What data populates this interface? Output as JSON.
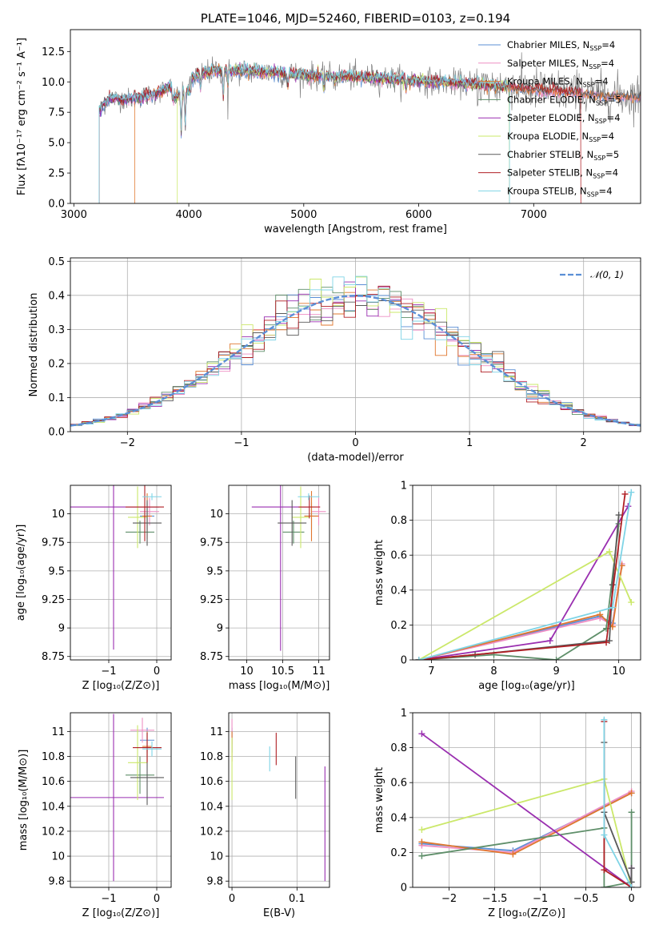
{
  "colors": {
    "chabrier_miles": "#5b8fd6",
    "salpeter_miles": "#ee8fc4",
    "kroupa_miles": "#e0772e",
    "chabrier_elodie": "#5f8f6a",
    "salpeter_elodie": "#9a2fb0",
    "kroupa_elodie": "#cbe86a",
    "chabrier_stelib": "#5a5a5a",
    "salpeter_stelib": "#b01f24",
    "kroupa_stelib": "#7fd4e6",
    "data": "#808080",
    "normal": "#5b8fd6"
  },
  "models": [
    {
      "key": "chabrier_miles",
      "imf": "Chabrier",
      "lib": "MILES",
      "nssp": "4"
    },
    {
      "key": "salpeter_miles",
      "imf": "Salpeter",
      "lib": "MILES",
      "nssp": "4"
    },
    {
      "key": "kroupa_miles",
      "imf": "Kroupa",
      "lib": "MILES",
      "nssp": "4"
    },
    {
      "key": "chabrier_elodie",
      "imf": "Chabrier",
      "lib": "ELODIE",
      "nssp": "5"
    },
    {
      "key": "salpeter_elodie",
      "imf": "Salpeter",
      "lib": "ELODIE",
      "nssp": "4"
    },
    {
      "key": "kroupa_elodie",
      "imf": "Kroupa",
      "lib": "ELODIE",
      "nssp": "4"
    },
    {
      "key": "chabrier_stelib",
      "imf": "Chabrier",
      "lib": "STELIB",
      "nssp": "5"
    },
    {
      "key": "salpeter_stelib",
      "imf": "Salpeter",
      "lib": "STELIB",
      "nssp": "4"
    },
    {
      "key": "kroupa_stelib",
      "imf": "Kroupa",
      "lib": "STELIB",
      "nssp": "4"
    }
  ],
  "chart_data": [
    {
      "id": "spectrum",
      "type": "line",
      "title": "PLATE=1046, MJD=52460, FIBERID=0103, z=0.194",
      "xlabel": "wavelength [Angstrom, rest frame]",
      "ylabel": "Flux [fλ10⁻¹⁷ erg cm⁻² s⁻¹ A⁻¹]",
      "xlim": [
        2970,
        7930
      ],
      "ylim": [
        0,
        14.3
      ],
      "xticks": [
        3000,
        4000,
        5000,
        6000,
        7000
      ],
      "yticks": [
        0.0,
        2.5,
        5.0,
        7.5,
        10.0,
        12.5
      ],
      "legend": "top-right",
      "continuum_x": [
        3220,
        3300,
        3500,
        3700,
        3900,
        4000,
        4200,
        4500,
        4800,
        5100,
        5500,
        6000,
        6500,
        7000,
        7300,
        7500,
        7930
      ],
      "continuum_y": [
        7.6,
        8.6,
        8.6,
        9.0,
        9.8,
        10.3,
        10.9,
        10.9,
        10.7,
        10.5,
        10.4,
        10.1,
        9.8,
        9.4,
        9.2,
        9.0,
        8.8
      ],
      "model_start_x": [
        3220,
        3220,
        3530,
        3220,
        3220,
        3900,
        3220,
        3220,
        3220
      ],
      "model_end_x": [
        7930,
        7930,
        7930,
        6790,
        6790,
        6790,
        7930,
        7410,
        6790
      ]
    },
    {
      "id": "residuals",
      "type": "histogram",
      "xlabel": "(data-model)/error",
      "ylabel": "Normed distribution",
      "xlim": [
        -2.5,
        2.5
      ],
      "ylim": [
        0,
        0.51
      ],
      "xticks": [
        -2,
        -1,
        0,
        1,
        2
      ],
      "yticks": [
        0.0,
        0.1,
        0.2,
        0.3,
        0.4,
        0.5
      ],
      "legend": "top-right",
      "normal_label": "𝒩(0, 1)",
      "bin_width": 0.1,
      "grid": true
    },
    {
      "id": "age_vs_Z",
      "type": "errorbar",
      "xlabel": "Z [log₁₀(Z/Z⊙)]",
      "ylabel": "age  [log₁₀(age/yr)]",
      "xlim": [
        -1.8,
        0.3
      ],
      "ylim": [
        8.72,
        10.25
      ],
      "xticks": [
        -1,
        0
      ],
      "yticks": [
        8.75,
        9.0,
        9.25,
        9.5,
        9.75,
        10.0
      ],
      "points": [
        {
          "model": "chabrier_miles",
          "x": -0.2,
          "y": 9.98,
          "xerr": 0.15,
          "yerr": 0.12
        },
        {
          "model": "salpeter_miles",
          "x": -0.15,
          "y": 10.02,
          "xerr": 0.2,
          "yerr": 0.12
        },
        {
          "model": "kroupa_miles",
          "x": -0.2,
          "y": 9.98,
          "xerr": 0.1,
          "yerr": 0.2
        },
        {
          "model": "chabrier_elodie",
          "x": -0.35,
          "y": 9.84,
          "xerr": 0.3,
          "yerr": 0.1
        },
        {
          "model": "salpeter_elodie",
          "x": -0.9,
          "y": 10.06,
          "xerr": 0.95,
          "yerr": 1.25
        },
        {
          "model": "kroupa_elodie",
          "x": -0.4,
          "y": 9.97,
          "xerr": 0.2,
          "yerr": 0.27
        },
        {
          "model": "chabrier_stelib",
          "x": -0.2,
          "y": 9.92,
          "xerr": 0.3,
          "yerr": 0.2
        },
        {
          "model": "salpeter_stelib",
          "x": -0.25,
          "y": 10.06,
          "xerr": 0.4,
          "yerr": 0.3
        },
        {
          "model": "kroupa_stelib",
          "x": -0.1,
          "y": 10.15,
          "xerr": 0.2,
          "yerr": 0.03
        }
      ]
    },
    {
      "id": "age_vs_mass",
      "type": "errorbar",
      "xlabel": "mass [log₁₀(M/M⊙)]",
      "ylabel": "",
      "xlim": [
        9.75,
        11.15
      ],
      "ylim": [
        8.72,
        10.25
      ],
      "xticks": [
        10.0,
        10.5,
        11.0
      ],
      "yticks": [
        8.75,
        9.0,
        9.25,
        9.5,
        9.75,
        10.0
      ],
      "points": [
        {
          "model": "chabrier_miles",
          "x": 10.9,
          "y": 9.98,
          "xerr": 0.1,
          "yerr": 0.12
        },
        {
          "model": "salpeter_miles",
          "x": 11.0,
          "y": 10.02,
          "xerr": 0.1,
          "yerr": 0.12
        },
        {
          "model": "kroupa_miles",
          "x": 10.9,
          "y": 9.98,
          "xerr": 0.1,
          "yerr": 0.22
        },
        {
          "model": "chabrier_elodie",
          "x": 10.65,
          "y": 9.84,
          "xerr": 0.15,
          "yerr": 0.1
        },
        {
          "model": "salpeter_elodie",
          "x": 10.47,
          "y": 10.06,
          "xerr": 0.4,
          "yerr": 1.26
        },
        {
          "model": "kroupa_elodie",
          "x": 10.75,
          "y": 9.97,
          "xerr": 0.12,
          "yerr": 0.27
        },
        {
          "model": "chabrier_stelib",
          "x": 10.63,
          "y": 9.92,
          "xerr": 0.2,
          "yerr": 0.2
        },
        {
          "model": "salpeter_stelib",
          "x": 10.87,
          "y": 10.06,
          "xerr": 0.15,
          "yerr": 0.1
        },
        {
          "model": "kroupa_stelib",
          "x": 10.86,
          "y": 10.15,
          "xerr": 0.15,
          "yerr": 0.03
        }
      ]
    },
    {
      "id": "weight_vs_age",
      "type": "line",
      "xlabel": "age  [log₁₀(age/yr)]",
      "ylabel": "mass weight",
      "xlim": [
        6.7,
        10.35
      ],
      "ylim": [
        0,
        1.0
      ],
      "xticks": [
        7,
        8,
        9,
        10
      ],
      "yticks": [
        0.0,
        0.2,
        0.4,
        0.6,
        0.8,
        1.0
      ],
      "series": [
        {
          "model": "chabrier_miles",
          "x": [
            6.8,
            9.7,
            9.9,
            10.05
          ],
          "y": [
            0.0,
            0.25,
            0.21,
            0.54
          ]
        },
        {
          "model": "salpeter_miles",
          "x": [
            6.8,
            9.7,
            9.9,
            10.05
          ],
          "y": [
            0.0,
            0.24,
            0.2,
            0.55
          ]
        },
        {
          "model": "kroupa_miles",
          "x": [
            6.8,
            9.7,
            9.9,
            10.05
          ],
          "y": [
            0.0,
            0.26,
            0.19,
            0.54
          ]
        },
        {
          "model": "chabrier_elodie",
          "x": [
            6.8,
            8.0,
            9.0,
            9.8,
            10.0
          ],
          "y": [
            0.0,
            0.03,
            0.0,
            0.18,
            0.78
          ]
        },
        {
          "model": "salpeter_elodie",
          "x": [
            6.8,
            8.9,
            10.15
          ],
          "y": [
            0.0,
            0.11,
            0.88
          ]
        },
        {
          "model": "kroupa_elodie",
          "x": [
            6.8,
            9.85,
            10.2
          ],
          "y": [
            0.0,
            0.62,
            0.33
          ]
        },
        {
          "model": "chabrier_stelib",
          "x": [
            6.8,
            7.7,
            9.85,
            9.9,
            10.0
          ],
          "y": [
            0.0,
            0.03,
            0.11,
            0.43,
            0.83
          ]
        },
        {
          "model": "salpeter_stelib",
          "x": [
            6.8,
            9.8,
            10.1
          ],
          "y": [
            0.0,
            0.1,
            0.95
          ]
        },
        {
          "model": "kroupa_stelib",
          "x": [
            6.8,
            9.9,
            10.2
          ],
          "y": [
            0.0,
            0.3,
            0.96
          ]
        }
      ]
    },
    {
      "id": "mass_vs_Z",
      "type": "errorbar",
      "xlabel": "Z [log₁₀(Z/Z⊙)]",
      "ylabel": "mass [log₁₀(M/M⊙)]",
      "xlim": [
        -1.8,
        0.3
      ],
      "ylim": [
        9.75,
        11.15
      ],
      "xticks": [
        -1,
        0
      ],
      "yticks": [
        9.8,
        10.0,
        10.2,
        10.4,
        10.6,
        10.8,
        11.0
      ],
      "points": [
        {
          "model": "chabrier_miles",
          "x": -0.2,
          "y": 10.93,
          "xerr": 0.15,
          "yerr": 0.1
        },
        {
          "model": "salpeter_miles",
          "x": -0.3,
          "y": 11.01,
          "xerr": 0.25,
          "yerr": 0.1
        },
        {
          "model": "kroupa_miles",
          "x": -0.2,
          "y": 10.88,
          "xerr": 0.1,
          "yerr": 0.12
        },
        {
          "model": "chabrier_elodie",
          "x": -0.35,
          "y": 10.65,
          "xerr": 0.3,
          "yerr": 0.15
        },
        {
          "model": "salpeter_elodie",
          "x": -0.9,
          "y": 10.47,
          "xerr": 1.05,
          "yerr": 0.67
        },
        {
          "model": "kroupa_elodie",
          "x": -0.4,
          "y": 10.75,
          "xerr": 0.2,
          "yerr": 0.3
        },
        {
          "model": "chabrier_stelib",
          "x": -0.2,
          "y": 10.63,
          "xerr": 0.35,
          "yerr": 0.22
        },
        {
          "model": "salpeter_stelib",
          "x": -0.2,
          "y": 10.87,
          "xerr": 0.3,
          "yerr": 0.12
        },
        {
          "model": "kroupa_stelib",
          "x": -0.1,
          "y": 10.86,
          "xerr": 0.2,
          "yerr": 0.06
        }
      ]
    },
    {
      "id": "mass_vs_ebv",
      "type": "errorbar",
      "xlabel": "E(B-V)",
      "ylabel": "",
      "xlim": [
        -0.005,
        0.15
      ],
      "ylim": [
        9.75,
        11.15
      ],
      "xticks": [
        0.0,
        0.1
      ],
      "yticks": [
        9.8,
        10.0,
        10.2,
        10.4,
        10.6,
        10.8,
        11.0
      ],
      "points": [
        {
          "model": "chabrier_miles",
          "x": 0.0,
          "y": 10.93,
          "xerr": 0.0,
          "yerr": 0.1
        },
        {
          "model": "salpeter_miles",
          "x": 0.0,
          "y": 11.0,
          "xerr": 0.0,
          "yerr": 0.1
        },
        {
          "model": "kroupa_miles",
          "x": 0.0,
          "y": 10.88,
          "xerr": 0.0,
          "yerr": 0.12
        },
        {
          "model": "kroupa_elodie",
          "x": 0.0,
          "y": 10.7,
          "xerr": 0.0,
          "yerr": 0.25
        },
        {
          "model": "kroupa_stelib",
          "x": 0.058,
          "y": 10.78,
          "xerr": 0.0,
          "yerr": 0.1
        },
        {
          "model": "salpeter_stelib",
          "x": 0.068,
          "y": 10.86,
          "xerr": 0.0,
          "yerr": 0.13
        },
        {
          "model": "chabrier_stelib",
          "x": 0.098,
          "y": 10.63,
          "xerr": 0.0,
          "yerr": 0.17
        },
        {
          "model": "salpeter_elodie",
          "x": 0.143,
          "y": 10.26,
          "xerr": 0.0,
          "yerr": 0.46
        }
      ]
    },
    {
      "id": "weight_vs_Z",
      "type": "line",
      "xlabel": "Z [log₁₀(Z/Z⊙)]",
      "ylabel": "mass weight",
      "xlim": [
        -2.4,
        0.1
      ],
      "ylim": [
        0,
        1.0
      ],
      "xticks": [
        -2.0,
        -1.5,
        -1.0,
        -0.5,
        0.0
      ],
      "yticks": [
        0.0,
        0.2,
        0.4,
        0.6,
        0.8,
        1.0
      ],
      "series": [
        {
          "model": "chabrier_miles",
          "x": [
            -2.3,
            -1.3,
            0.0
          ],
          "y": [
            0.25,
            0.21,
            0.54
          ]
        },
        {
          "model": "salpeter_miles",
          "x": [
            -2.3,
            -1.3,
            0.0
          ],
          "y": [
            0.24,
            0.2,
            0.55
          ]
        },
        {
          "model": "kroupa_miles",
          "x": [
            -2.3,
            -1.3,
            0.0
          ],
          "y": [
            0.26,
            0.19,
            0.54
          ]
        },
        {
          "model": "chabrier_elodie",
          "x": [
            -2.3,
            -0.3,
            -0.3,
            0.0,
            0.0
          ],
          "y": [
            0.18,
            0.34,
            0.0,
            0.03,
            0.43
          ]
        },
        {
          "model": "salpeter_elodie",
          "x": [
            -2.3,
            0.0,
            0.0
          ],
          "y": [
            0.88,
            0.0,
            0.11
          ]
        },
        {
          "model": "kroupa_elodie",
          "x": [
            -2.3,
            -0.3,
            0.0
          ],
          "y": [
            0.33,
            0.62,
            0.0
          ]
        },
        {
          "model": "chabrier_stelib",
          "x": [
            -0.3,
            -0.3,
            0.0,
            0.0
          ],
          "y": [
            0.83,
            0.43,
            0.03,
            0.11
          ]
        },
        {
          "model": "salpeter_stelib",
          "x": [
            -0.3,
            -0.3,
            0.0
          ],
          "y": [
            0.95,
            0.1,
            0.0
          ]
        },
        {
          "model": "kroupa_stelib",
          "x": [
            -0.3,
            -0.3,
            0.0
          ],
          "y": [
            0.96,
            0.3,
            0.0
          ]
        }
      ]
    }
  ]
}
